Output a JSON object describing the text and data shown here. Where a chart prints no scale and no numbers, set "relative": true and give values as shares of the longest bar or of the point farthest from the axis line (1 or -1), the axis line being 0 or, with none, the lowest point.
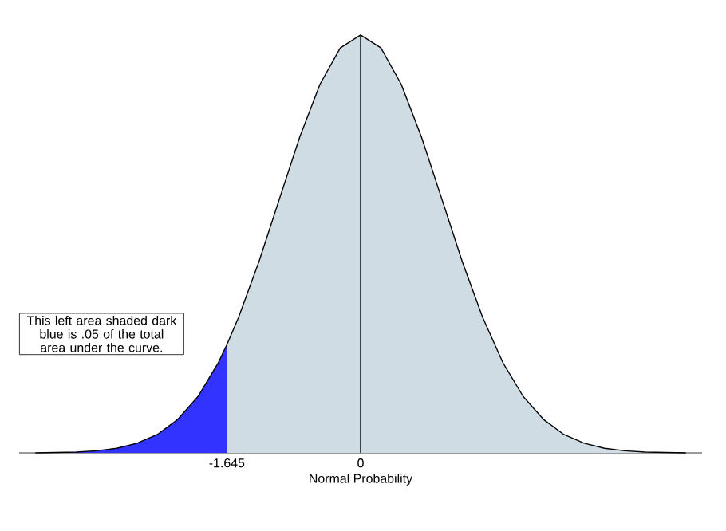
{
  "chart_data": {
    "type": "area",
    "relative": true,
    "xlabel": "Normal Probability",
    "xlim": [
      -4.2,
      4.2
    ],
    "xticks": [
      -1.645,
      0
    ],
    "series": [
      {
        "type": "area",
        "color": "#d0dce4",
        "x": [
          -1.645,
          -1.5,
          -1.25,
          -1,
          -0.75,
          -0.5,
          -0.25,
          0,
          0.25,
          0.5,
          0.75,
          1,
          1.25,
          1.5,
          1.75,
          2,
          2.25,
          2.5,
          2.75,
          3,
          3.25,
          3.5,
          3.75
        ],
        "values": [
          0.259,
          0.325,
          0.458,
          0.607,
          0.755,
          0.882,
          0.969,
          1,
          0.969,
          0.882,
          0.755,
          0.607,
          0.458,
          0.325,
          0.216,
          0.135,
          0.08,
          0.044,
          0.023,
          0.011,
          0.005,
          0.002,
          0.001
        ]
      },
      {
        "type": "area",
        "color": "#3333ff",
        "x": [
          -3.75,
          -3.5,
          -3.25,
          -3,
          -2.75,
          -2.5,
          -2.25,
          -2,
          -1.75,
          -1.645
        ],
        "values": [
          0.001,
          0.002,
          0.005,
          0.011,
          0.023,
          0.044,
          0.08,
          0.135,
          0.216,
          0.259
        ]
      },
      {
        "type": "line",
        "color": "#000000",
        "x": [
          -4,
          -3.75,
          -3.5,
          -3.25,
          -3,
          -2.75,
          -2.5,
          -2.25,
          -2,
          -1.75,
          -1.645,
          -1.5,
          -1.25,
          -1,
          -0.75,
          -0.5,
          -0.25,
          0,
          0.25,
          0.5,
          0.75,
          1,
          1.25,
          1.5,
          1.75,
          2,
          2.25,
          2.5,
          2.75,
          3,
          3.25,
          3.5,
          3.75,
          4
        ],
        "values": [
          0,
          0.001,
          0.002,
          0.005,
          0.011,
          0.023,
          0.044,
          0.08,
          0.135,
          0.216,
          0.259,
          0.325,
          0.458,
          0.607,
          0.755,
          0.882,
          0.969,
          1,
          0.969,
          0.882,
          0.755,
          0.607,
          0.458,
          0.325,
          0.216,
          0.135,
          0.08,
          0.044,
          0.023,
          0.011,
          0.005,
          0.002,
          0.001,
          0
        ]
      }
    ],
    "ref_lines": [
      {
        "axis": "x",
        "value": 0,
        "color": "#000000"
      }
    ],
    "annotations": [
      "This left area shaded dark blue is .05 of the total area under the curve."
    ]
  }
}
